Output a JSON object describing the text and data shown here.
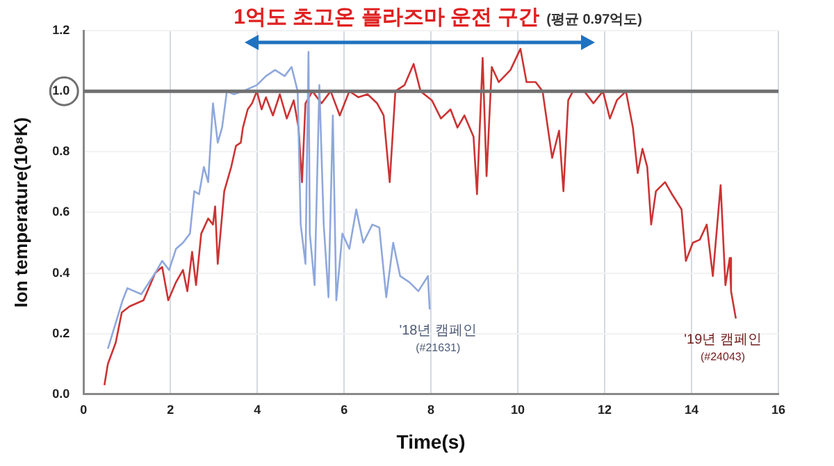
{
  "chart_data": {
    "type": "line",
    "title": "1억도 초고온 플라즈마 운전 구간",
    "subtitle": "(평균 0.97억도)",
    "xlabel": "Time(s)",
    "ylabel": "Ion temperature(10⁸K)",
    "xlim": [
      0,
      16
    ],
    "xticks": [
      0,
      2,
      4,
      6,
      8,
      10,
      12,
      14,
      16
    ],
    "ylim": [
      0,
      1.2
    ],
    "yticks": [
      {
        "value": 0,
        "label": "0.0"
      },
      0.2,
      0.4,
      0.6,
      0.8,
      {
        "value": 1,
        "label": "1.0"
      },
      1.2
    ],
    "grid": true,
    "marker": "none",
    "line_style": "solid",
    "ref_lines": [
      {
        "axis": "y",
        "value": 1,
        "color": "#707070"
      }
    ],
    "series": [
      {
        "name": "'18년 캠페인 (#21631)",
        "color": "#8fa8dc",
        "x": [
          0.56,
          0.9,
          1.01,
          1.33,
          1.65,
          1.81,
          1.97,
          2.13,
          2.29,
          2.45,
          2.55,
          2.66,
          2.77,
          2.87,
          2.98,
          3.09,
          3.19,
          3.3,
          3.46,
          3.67,
          3.99,
          4.2,
          4.41,
          4.63,
          4.79,
          4.93,
          5.0,
          5.11,
          5.18,
          5.21,
          5.32,
          5.43,
          5.53,
          5.64,
          5.74,
          5.82,
          5.96,
          6.12,
          6.28,
          6.44,
          6.65,
          6.81,
          6.97,
          7.13,
          7.29,
          7.5,
          7.71,
          7.93,
          7.97
        ],
        "values": [
          0.15,
          0.31,
          0.35,
          0.33,
          0.4,
          0.44,
          0.41,
          0.48,
          0.5,
          0.53,
          0.67,
          0.66,
          0.75,
          0.7,
          0.96,
          0.83,
          0.88,
          1.0,
          0.99,
          1.0,
          1.02,
          1.05,
          1.07,
          1.05,
          1.08,
          1.0,
          0.56,
          0.43,
          1.13,
          0.53,
          0.36,
          1.02,
          0.56,
          0.32,
          0.92,
          0.31,
          0.53,
          0.48,
          0.61,
          0.5,
          0.56,
          0.55,
          0.32,
          0.5,
          0.39,
          0.37,
          0.34,
          0.39,
          0.28
        ]
      },
      {
        "name": "'19년 캠페인 (#24043)",
        "color": "#cc3333",
        "x": [
          0.48,
          0.56,
          0.74,
          0.88,
          1.06,
          1.38,
          1.65,
          1.81,
          1.95,
          2.13,
          2.29,
          2.39,
          2.5,
          2.59,
          2.71,
          2.87,
          2.98,
          3.03,
          3.09,
          3.24,
          3.4,
          3.51,
          3.62,
          3.67,
          3.78,
          3.88,
          3.99,
          4.1,
          4.2,
          4.36,
          4.52,
          4.68,
          4.84,
          4.95,
          5.03,
          5.11,
          5.27,
          5.48,
          5.69,
          5.9,
          6.12,
          6.33,
          6.54,
          6.76,
          6.91,
          7.05,
          7.18,
          7.39,
          7.6,
          7.76,
          8.02,
          8.23,
          8.45,
          8.61,
          8.77,
          8.98,
          9.06,
          9.19,
          9.28,
          9.4,
          9.56,
          9.83,
          10.06,
          10.2,
          10.41,
          10.57,
          10.79,
          10.95,
          11.05,
          11.16,
          11.27,
          11.53,
          11.74,
          11.96,
          12.12,
          12.28,
          12.49,
          12.65,
          12.76,
          12.87,
          12.98,
          13.07,
          13.18,
          13.39,
          13.55,
          13.77,
          13.87,
          14.03,
          14.19,
          14.35,
          14.49,
          14.67,
          14.78,
          14.88,
          14.91,
          15.02
        ],
        "values": [
          0.03,
          0.1,
          0.17,
          0.27,
          0.29,
          0.31,
          0.4,
          0.42,
          0.31,
          0.37,
          0.41,
          0.34,
          0.47,
          0.36,
          0.53,
          0.58,
          0.56,
          0.62,
          0.43,
          0.67,
          0.75,
          0.82,
          0.83,
          0.88,
          0.94,
          0.96,
          1.0,
          0.94,
          0.98,
          0.92,
          0.99,
          0.91,
          0.97,
          0.88,
          0.7,
          0.96,
          1.0,
          0.96,
          1.0,
          0.92,
          1.0,
          0.98,
          0.99,
          0.96,
          0.92,
          0.7,
          1.0,
          1.02,
          1.09,
          1.0,
          0.97,
          0.91,
          0.94,
          0.88,
          0.92,
          0.85,
          0.66,
          1.11,
          0.72,
          1.08,
          1.03,
          1.07,
          1.14,
          1.03,
          1.03,
          1.0,
          0.78,
          0.87,
          0.67,
          0.97,
          1.0,
          1.0,
          0.96,
          1.0,
          0.91,
          0.97,
          1.0,
          0.88,
          0.73,
          0.81,
          0.75,
          0.56,
          0.67,
          0.7,
          0.66,
          0.61,
          0.44,
          0.5,
          0.51,
          0.56,
          0.39,
          0.69,
          0.36,
          0.45,
          0.34,
          0.25
        ]
      }
    ]
  }
}
